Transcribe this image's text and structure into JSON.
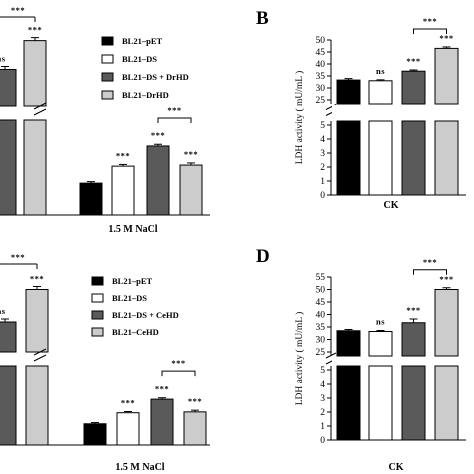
{
  "chart_data": [
    {
      "type": "bar",
      "panel_label": "",
      "xlabel": "1.5 M NaCl",
      "categories": [
        "1.5 M NaCl"
      ],
      "series": [
        {
          "name": "BL21–pET",
          "color": "#000000",
          "values": [
            1.5
          ],
          "err": [
            0.07
          ],
          "sig": ""
        },
        {
          "name": "BL21–DS",
          "color": "#ffffff",
          "values": [
            2.3
          ],
          "err": [
            0.08
          ],
          "sig": "***"
        },
        {
          "name": "BL21–DS + DrHD",
          "color": "#5a5a5a",
          "values": [
            3.25
          ],
          "err": [
            0.08
          ],
          "sig": "***"
        },
        {
          "name": "BL21–DrHD",
          "color": "#cccccc",
          "values": [
            2.35
          ],
          "err": [
            0.1
          ],
          "sig": "***"
        }
      ],
      "partial_left_bars": [
        {
          "label_above": "ns",
          "value": 37
        },
        {
          "label_above": "***",
          "value": 46.5
        }
      ],
      "comparisons": [
        {
          "from": 2,
          "to": 3,
          "text": "***"
        }
      ],
      "top_comparison_text": "***",
      "legend": "top-right"
    },
    {
      "type": "bar",
      "panel_label": "B",
      "xlabel": "CK",
      "ylabel": "LDH activity ( mU/mL )",
      "categories": [
        "CK"
      ],
      "broken_axis": {
        "lower": [
          0,
          5
        ],
        "upper": [
          25,
          50
        ]
      },
      "yticks_lower": [
        "0",
        "1",
        "2",
        "3",
        "4",
        "5"
      ],
      "yticks_upper": [
        "25",
        "30",
        "35",
        "40",
        "45",
        "50"
      ],
      "series": [
        {
          "name": "BL21–pET",
          "color": "#000000",
          "values": [
            33.3
          ],
          "err": [
            0.6
          ],
          "sig": ""
        },
        {
          "name": "BL21–DS",
          "color": "#ffffff",
          "values": [
            33.0
          ],
          "err": [
            0.4
          ],
          "sig": "ns"
        },
        {
          "name": "BL21–DS + DrHD",
          "color": "#5a5a5a",
          "values": [
            37.0
          ],
          "err": [
            0.5
          ],
          "sig": "***"
        },
        {
          "name": "BL21–DrHD",
          "color": "#cccccc",
          "values": [
            46.5
          ],
          "err": [
            0.6
          ],
          "sig": "***"
        }
      ],
      "comparisons": [
        {
          "from": 2,
          "to": 3,
          "text": "***"
        }
      ]
    },
    {
      "type": "bar",
      "panel_label": "",
      "xlabel": "1.5 M NaCl",
      "categories": [
        "1.5 M NaCl"
      ],
      "series": [
        {
          "name": "BL21–pET",
          "color": "#000000",
          "values": [
            1.25
          ],
          "err": [
            0.07
          ],
          "sig": ""
        },
        {
          "name": "BL21–DS",
          "color": "#ffffff",
          "values": [
            1.9
          ],
          "err": [
            0.07
          ],
          "sig": "***"
        },
        {
          "name": "BL21–DS + CeHD",
          "color": "#5a5a5a",
          "values": [
            2.7
          ],
          "err": [
            0.08
          ],
          "sig": "***"
        },
        {
          "name": "BL21–CeHD",
          "color": "#cccccc",
          "values": [
            1.95
          ],
          "err": [
            0.1
          ],
          "sig": "***"
        }
      ],
      "partial_left_bars": [
        {
          "label_above": "ns",
          "value": 37
        },
        {
          "label_above": "***",
          "value": 50
        }
      ],
      "comparisons": [
        {
          "from": 2,
          "to": 3,
          "text": "***"
        }
      ],
      "top_comparison_text": "***",
      "legend": "top-right"
    },
    {
      "type": "bar",
      "panel_label": "D",
      "xlabel": "CK",
      "ylabel": "LDH activity ( mU/mL )",
      "categories": [
        "CK"
      ],
      "broken_axis": {
        "lower": [
          0,
          5
        ],
        "upper": [
          25,
          55
        ]
      },
      "yticks_lower": [
        "0",
        "1",
        "2",
        "3",
        "4",
        "5"
      ],
      "yticks_upper": [
        "25",
        "30",
        "35",
        "40",
        "45",
        "50",
        "55"
      ],
      "series": [
        {
          "name": "BL21–pET",
          "color": "#000000",
          "values": [
            33.5
          ],
          "err": [
            0.5
          ],
          "sig": ""
        },
        {
          "name": "BL21–DS",
          "color": "#ffffff",
          "values": [
            33.2
          ],
          "err": [
            0.4
          ],
          "sig": "ns"
        },
        {
          "name": "BL21–DS + CeHD",
          "color": "#5a5a5a",
          "values": [
            36.7
          ],
          "err": [
            1.5
          ],
          "sig": "***"
        },
        {
          "name": "BL21–CeHD",
          "color": "#cccccc",
          "values": [
            50.0
          ],
          "err": [
            0.7
          ],
          "sig": "***"
        }
      ],
      "comparisons": [
        {
          "from": 2,
          "to": 3,
          "text": "***"
        }
      ]
    }
  ]
}
